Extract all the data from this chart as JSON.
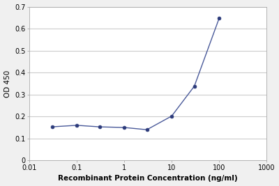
{
  "x_values": [
    0.03,
    0.1,
    0.3,
    1,
    3,
    10,
    30,
    100
  ],
  "y_values": [
    0.153,
    0.16,
    0.153,
    0.15,
    0.14,
    0.202,
    0.338,
    0.647
  ],
  "line_color": "#4a5a9a",
  "marker_color": "#2b3a7a",
  "marker_size": 3.5,
  "line_width": 1.0,
  "xlabel": "Recombinant Protein Concentration (ng/ml)",
  "ylabel": "OD 450",
  "xlim": [
    0.01,
    1000
  ],
  "ylim": [
    0,
    0.7
  ],
  "yticks": [
    0,
    0.1,
    0.2,
    0.3,
    0.4,
    0.5,
    0.6,
    0.7
  ],
  "xtick_labels": [
    "0.01",
    "0.1",
    "1",
    "10",
    "100",
    "1000"
  ],
  "xtick_values": [
    0.01,
    0.1,
    1,
    10,
    100,
    1000
  ],
  "plot_bg_color": "#ffffff",
  "fig_bg_color": "#f0f0f0",
  "grid_color": "#cccccc",
  "xlabel_fontsize": 7.5,
  "ylabel_fontsize": 7.5,
  "tick_fontsize": 7
}
